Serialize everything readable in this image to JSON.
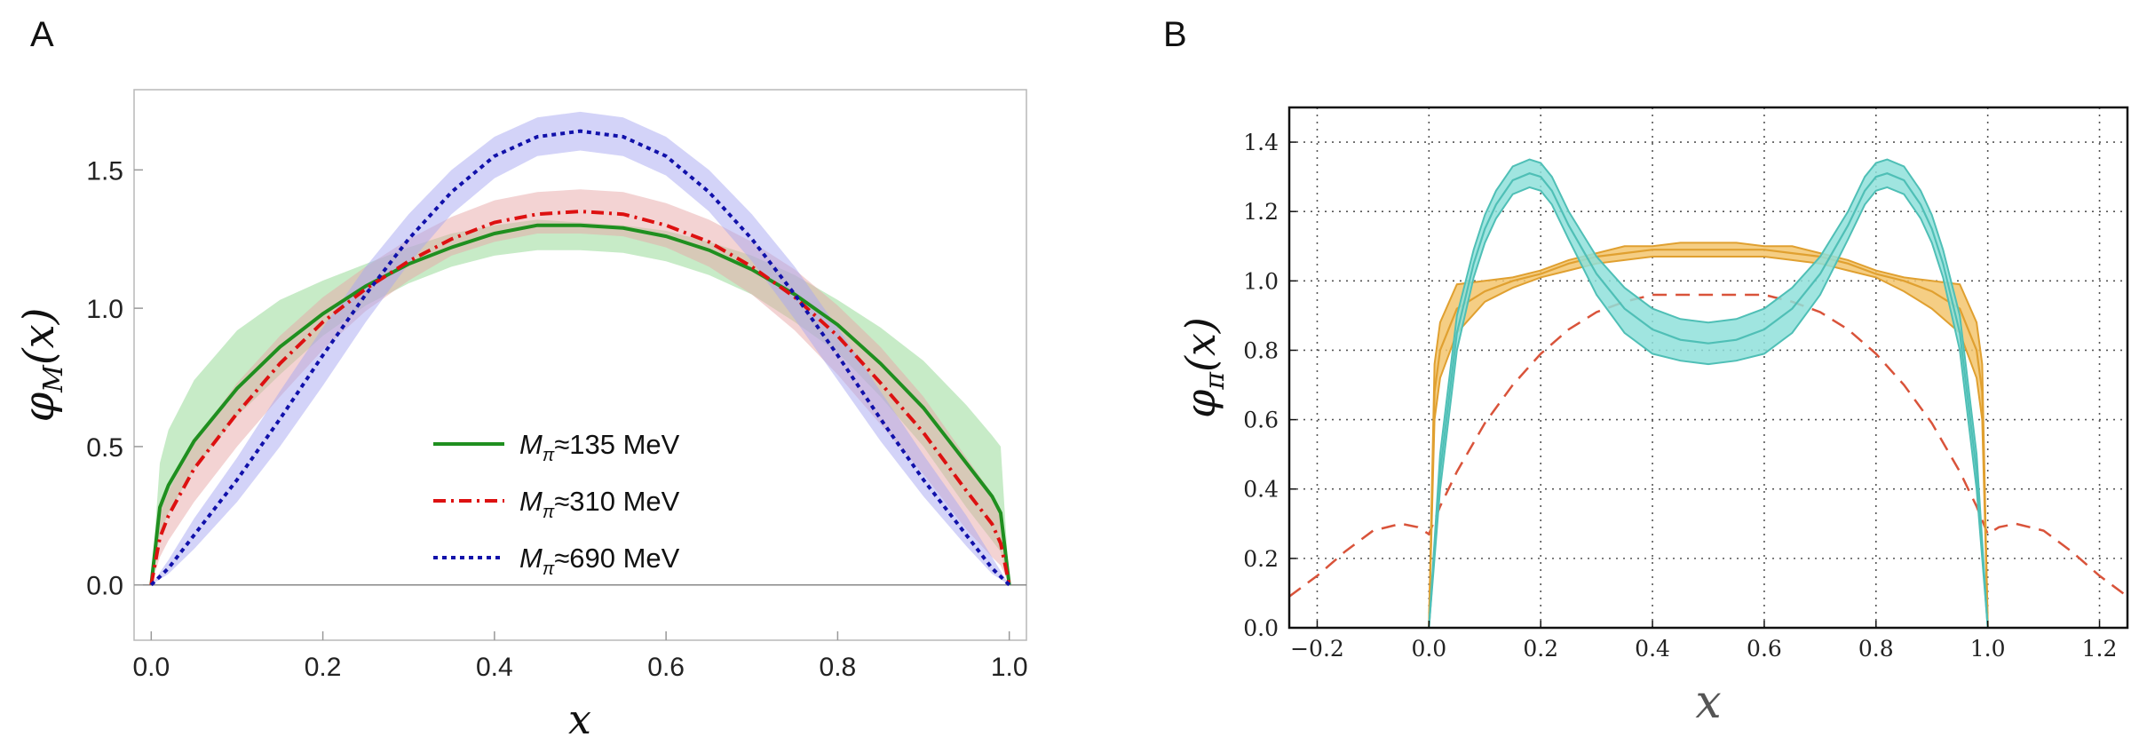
{
  "panels": {
    "a": {
      "label": "A"
    },
    "b": {
      "label": "B"
    }
  },
  "chart_data": [
    {
      "type": "line",
      "panel": "A",
      "xlabel": "x",
      "ylabel_main": "φ",
      "ylabel_sub": "M",
      "ylabel_arg": "(x)",
      "xlim": [
        -0.02,
        1.02
      ],
      "ylim": [
        -0.2,
        1.79
      ],
      "xticks": [
        0.0,
        0.2,
        0.4,
        0.6,
        0.8,
        1.0
      ],
      "xtick_labels": [
        "0.0",
        "0.2",
        "0.4",
        "0.6",
        "0.8",
        "1.0"
      ],
      "yticks": [
        0.0,
        0.5,
        1.0,
        1.5
      ],
      "ytick_labels": [
        "0.0",
        "0.5",
        "1.0",
        "1.5"
      ],
      "grid": false,
      "legend_position": "bottom-center",
      "series": [
        {
          "name": "135",
          "legend_var": "M",
          "legend_sub": "π",
          "legend_rest": "≈135 MeV",
          "color": "#1f8f1f",
          "band_color": "#8fd88f",
          "dash": "solid",
          "x": [
            0.0,
            0.01,
            0.02,
            0.05,
            0.1,
            0.15,
            0.2,
            0.25,
            0.3,
            0.35,
            0.4,
            0.45,
            0.5,
            0.55,
            0.6,
            0.65,
            0.7,
            0.75,
            0.8,
            0.85,
            0.9,
            0.95,
            0.98,
            0.99,
            1.0
          ],
          "y": [
            0.0,
            0.28,
            0.36,
            0.52,
            0.71,
            0.86,
            0.98,
            1.08,
            1.16,
            1.22,
            1.27,
            1.3,
            1.3,
            1.29,
            1.26,
            1.21,
            1.14,
            1.05,
            0.94,
            0.8,
            0.64,
            0.44,
            0.32,
            0.26,
            0.0
          ],
          "lower": [
            0.0,
            0.18,
            0.26,
            0.42,
            0.61,
            0.76,
            0.9,
            1.01,
            1.09,
            1.15,
            1.19,
            1.21,
            1.21,
            1.2,
            1.17,
            1.12,
            1.05,
            0.95,
            0.84,
            0.68,
            0.5,
            0.28,
            0.16,
            0.12,
            0.0
          ],
          "upper": [
            0.0,
            0.44,
            0.56,
            0.74,
            0.92,
            1.03,
            1.1,
            1.16,
            1.22,
            1.27,
            1.3,
            1.32,
            1.31,
            1.3,
            1.28,
            1.24,
            1.19,
            1.12,
            1.03,
            0.93,
            0.81,
            0.65,
            0.54,
            0.5,
            0.0
          ]
        },
        {
          "name": "310",
          "legend_var": "M",
          "legend_sub": "π",
          "legend_rest": "≈310 MeV",
          "color": "#dd1111",
          "band_color": "#e8a8a8",
          "dash": "14,6,3,6",
          "x": [
            0.0,
            0.01,
            0.02,
            0.05,
            0.1,
            0.15,
            0.2,
            0.25,
            0.3,
            0.35,
            0.4,
            0.45,
            0.5,
            0.55,
            0.6,
            0.65,
            0.7,
            0.75,
            0.8,
            0.85,
            0.9,
            0.95,
            0.98,
            0.99,
            1.0
          ],
          "y": [
            0.0,
            0.17,
            0.25,
            0.42,
            0.62,
            0.8,
            0.95,
            1.07,
            1.17,
            1.25,
            1.31,
            1.34,
            1.35,
            1.34,
            1.3,
            1.24,
            1.15,
            1.04,
            0.9,
            0.73,
            0.55,
            0.34,
            0.22,
            0.15,
            0.0
          ],
          "lower": [
            0.0,
            0.1,
            0.16,
            0.3,
            0.5,
            0.68,
            0.85,
            0.99,
            1.1,
            1.19,
            1.24,
            1.27,
            1.27,
            1.26,
            1.22,
            1.15,
            1.05,
            0.92,
            0.76,
            0.58,
            0.4,
            0.2,
            0.1,
            0.07,
            0.0
          ],
          "upper": [
            0.0,
            0.26,
            0.34,
            0.52,
            0.73,
            0.9,
            1.04,
            1.15,
            1.25,
            1.33,
            1.39,
            1.42,
            1.43,
            1.42,
            1.38,
            1.32,
            1.24,
            1.14,
            1.01,
            0.86,
            0.68,
            0.46,
            0.33,
            0.25,
            0.0
          ]
        },
        {
          "name": "690",
          "legend_var": "M",
          "legend_sub": "π",
          "legend_rest": "≈690 MeV",
          "color": "#1111aa",
          "band_color": "#a8a8f2",
          "dash": "5,5",
          "x": [
            0.0,
            0.02,
            0.05,
            0.1,
            0.15,
            0.2,
            0.25,
            0.3,
            0.35,
            0.4,
            0.45,
            0.5,
            0.55,
            0.6,
            0.65,
            0.7,
            0.75,
            0.8,
            0.85,
            0.9,
            0.95,
            0.98,
            1.0
          ],
          "y": [
            0.0,
            0.06,
            0.18,
            0.38,
            0.6,
            0.83,
            1.05,
            1.25,
            1.42,
            1.55,
            1.62,
            1.64,
            1.62,
            1.55,
            1.42,
            1.25,
            1.05,
            0.83,
            0.6,
            0.38,
            0.18,
            0.06,
            0.0
          ],
          "lower": [
            0.0,
            0.04,
            0.13,
            0.3,
            0.5,
            0.72,
            0.95,
            1.16,
            1.34,
            1.47,
            1.55,
            1.57,
            1.55,
            1.48,
            1.35,
            1.17,
            0.96,
            0.74,
            0.52,
            0.32,
            0.14,
            0.04,
            0.0
          ],
          "upper": [
            0.0,
            0.09,
            0.24,
            0.46,
            0.7,
            0.93,
            1.15,
            1.34,
            1.5,
            1.62,
            1.69,
            1.71,
            1.69,
            1.62,
            1.5,
            1.34,
            1.15,
            0.93,
            0.7,
            0.47,
            0.25,
            0.1,
            0.0
          ]
        }
      ]
    },
    {
      "type": "line",
      "panel": "B",
      "xlabel": "x",
      "ylabel_main": "φ",
      "ylabel_sub": "π",
      "ylabel_arg": "(x)",
      "xlim": [
        -0.25,
        1.25
      ],
      "ylim": [
        0.0,
        1.5
      ],
      "xticks": [
        -0.2,
        0.0,
        0.2,
        0.4,
        0.6,
        0.8,
        1.0,
        1.2
      ],
      "xtick_labels": [
        "−0.2",
        "0.0",
        "0.2",
        "0.4",
        "0.6",
        "0.8",
        "1.0",
        "1.2"
      ],
      "yticks": [
        0.0,
        0.2,
        0.4,
        0.6,
        0.8,
        1.0,
        1.2,
        1.4
      ],
      "ytick_labels": [
        "0.0",
        "0.2",
        "0.4",
        "0.6",
        "0.8",
        "1.0",
        "1.2",
        "1.4"
      ],
      "grid": true,
      "series": [
        {
          "name": "dashed",
          "color": "#d9533a",
          "dash": "16,10",
          "x": [
            -0.25,
            -0.2,
            -0.15,
            -0.1,
            -0.05,
            -0.02,
            0.0,
            0.02,
            0.05,
            0.1,
            0.15,
            0.2,
            0.25,
            0.3,
            0.35,
            0.4,
            0.45,
            0.5,
            0.55,
            0.6,
            0.65,
            0.7,
            0.75,
            0.8,
            0.85,
            0.9,
            0.95,
            0.98,
            1.0,
            1.02,
            1.05,
            1.1,
            1.15,
            1.2,
            1.25
          ],
          "y": [
            0.09,
            0.15,
            0.22,
            0.28,
            0.3,
            0.29,
            0.27,
            0.35,
            0.45,
            0.59,
            0.7,
            0.79,
            0.86,
            0.91,
            0.94,
            0.96,
            0.96,
            0.96,
            0.96,
            0.96,
            0.94,
            0.91,
            0.86,
            0.79,
            0.7,
            0.59,
            0.45,
            0.35,
            0.27,
            0.29,
            0.3,
            0.28,
            0.22,
            0.15,
            0.09
          ]
        },
        {
          "name": "orange",
          "color": "#e0a030",
          "band_color": "#f3c66e",
          "dash": "solid",
          "x": [
            0.0,
            0.01,
            0.02,
            0.05,
            0.1,
            0.15,
            0.2,
            0.25,
            0.3,
            0.35,
            0.4,
            0.45,
            0.5,
            0.55,
            0.6,
            0.65,
            0.7,
            0.75,
            0.8,
            0.85,
            0.9,
            0.95,
            0.98,
            0.99,
            1.0
          ],
          "y": [
            0.0,
            0.68,
            0.8,
            0.92,
            0.97,
            1.0,
            1.02,
            1.05,
            1.07,
            1.08,
            1.09,
            1.09,
            1.09,
            1.09,
            1.09,
            1.08,
            1.07,
            1.05,
            1.02,
            1.0,
            0.97,
            0.92,
            0.8,
            0.68,
            0.0
          ],
          "lower": [
            0.0,
            0.6,
            0.72,
            0.85,
            0.94,
            0.98,
            1.01,
            1.03,
            1.05,
            1.06,
            1.07,
            1.07,
            1.07,
            1.07,
            1.07,
            1.06,
            1.05,
            1.03,
            1.01,
            0.97,
            0.92,
            0.85,
            0.72,
            0.6,
            0.0
          ],
          "upper": [
            0.0,
            0.76,
            0.88,
            0.99,
            1.0,
            1.01,
            1.03,
            1.06,
            1.08,
            1.1,
            1.1,
            1.11,
            1.11,
            1.11,
            1.1,
            1.1,
            1.08,
            1.06,
            1.03,
            1.01,
            1.0,
            0.99,
            0.88,
            0.76,
            0.0
          ]
        },
        {
          "name": "teal",
          "color": "#4fbfb6",
          "band_color": "#8fe0da",
          "dash": "solid",
          "x": [
            0.0,
            0.02,
            0.05,
            0.08,
            0.1,
            0.12,
            0.15,
            0.18,
            0.2,
            0.22,
            0.25,
            0.3,
            0.35,
            0.4,
            0.45,
            0.5,
            0.55,
            0.6,
            0.65,
            0.7,
            0.75,
            0.78,
            0.8,
            0.82,
            0.85,
            0.88,
            0.9,
            0.92,
            0.95,
            0.98,
            1.0
          ],
          "y": [
            0.0,
            0.45,
            0.85,
            1.05,
            1.15,
            1.22,
            1.29,
            1.31,
            1.3,
            1.26,
            1.16,
            1.02,
            0.92,
            0.86,
            0.83,
            0.82,
            0.83,
            0.86,
            0.92,
            1.02,
            1.16,
            1.26,
            1.3,
            1.31,
            1.29,
            1.22,
            1.15,
            1.05,
            0.85,
            0.45,
            0.0
          ],
          "lower": [
            0.0,
            0.4,
            0.8,
            1.01,
            1.11,
            1.18,
            1.25,
            1.27,
            1.26,
            1.22,
            1.12,
            0.96,
            0.85,
            0.79,
            0.77,
            0.76,
            0.77,
            0.79,
            0.85,
            0.96,
            1.12,
            1.22,
            1.26,
            1.27,
            1.25,
            1.18,
            1.11,
            1.01,
            0.8,
            0.4,
            0.0
          ],
          "upper": [
            0.0,
            0.5,
            0.9,
            1.09,
            1.19,
            1.26,
            1.33,
            1.35,
            1.34,
            1.3,
            1.2,
            1.07,
            0.98,
            0.92,
            0.89,
            0.88,
            0.89,
            0.92,
            0.98,
            1.07,
            1.2,
            1.3,
            1.34,
            1.35,
            1.33,
            1.26,
            1.19,
            1.09,
            0.9,
            0.5,
            0.0
          ]
        }
      ]
    }
  ]
}
